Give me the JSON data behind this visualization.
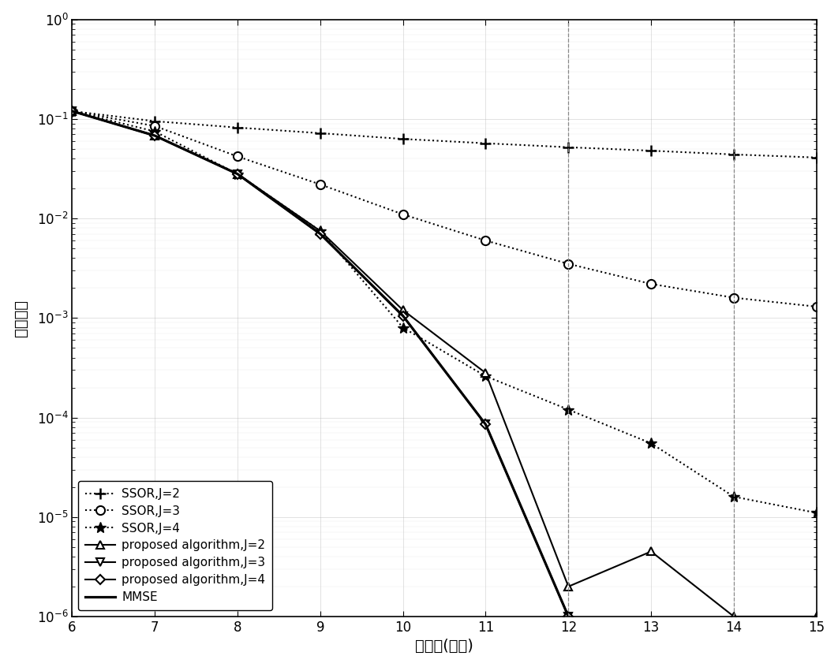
{
  "snr": [
    6,
    7,
    8,
    9,
    10,
    11,
    12,
    13,
    14,
    15
  ],
  "ssor_j2": [
    0.12,
    0.095,
    0.082,
    0.072,
    0.063,
    0.057,
    0.052,
    0.048,
    0.044,
    0.041
  ],
  "ssor_j3": [
    0.12,
    0.085,
    0.042,
    0.022,
    0.011,
    0.006,
    0.0035,
    0.0022,
    0.0016,
    0.0013
  ],
  "ssor_j4": [
    0.12,
    0.075,
    0.028,
    0.0075,
    0.0008,
    0.00026,
    0.00012,
    5.5e-05,
    1.6e-05,
    1.1e-05
  ],
  "prop_j2": [
    0.12,
    0.068,
    0.028,
    0.0075,
    0.0012,
    0.00028,
    2e-06,
    4.5e-06,
    1e-06,
    1e-06
  ],
  "prop_j3": [
    0.12,
    0.068,
    0.028,
    0.007,
    0.00105,
    8.5e-05,
    1e-06,
    2e-07,
    1e-07,
    1e-07
  ],
  "prop_j4": [
    0.12,
    0.068,
    0.028,
    0.007,
    0.00105,
    8.5e-05,
    1e-06,
    2e-07,
    1e-07,
    1e-07
  ],
  "mmse": [
    0.12,
    0.068,
    0.028,
    0.007,
    0.00105,
    8.5e-05,
    1e-06,
    2e-07,
    1e-07,
    1e-07
  ],
  "xlabel": "信噪比(分贝)",
  "ylabel": "误比特率",
  "xlim": [
    6,
    15
  ],
  "ylim_low": 1e-06,
  "ylim_high": 1.0,
  "xticks": [
    6,
    7,
    8,
    9,
    10,
    11,
    12,
    13,
    14,
    15
  ],
  "legend_labels": [
    "SSOR,J=2",
    "SSOR,J=3",
    "SSOR,J=4",
    "proposed algorithm,J=2",
    "proposed algorithm,J=3",
    "proposed algorithm,J=4",
    "MMSE"
  ],
  "line_width": 1.5,
  "marker_size": 7,
  "font_size_label": 14,
  "font_size_tick": 12,
  "font_size_legend": 11
}
